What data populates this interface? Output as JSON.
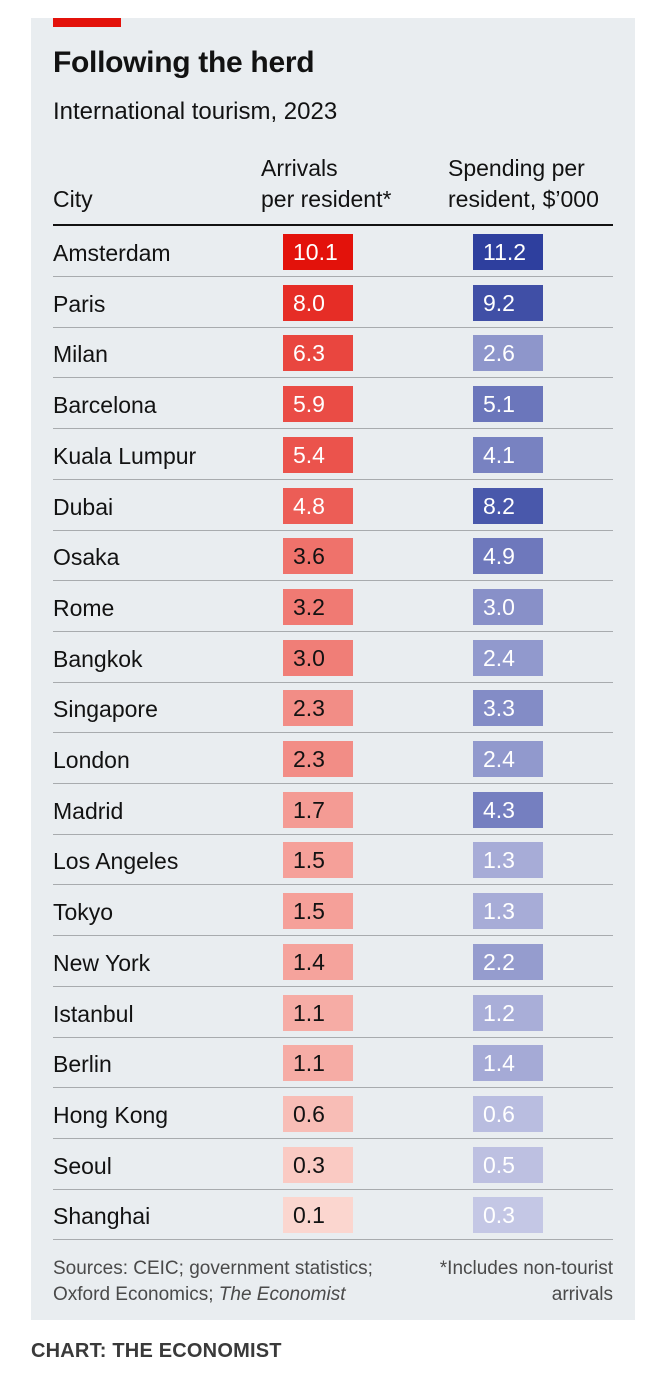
{
  "title": "Following the herd",
  "subtitle": "International tourism, 2023",
  "columns": {
    "city": "City",
    "arrivals_line1": "Arrivals",
    "arrivals_line2": "per resident*",
    "spending_line1": "Spending per",
    "spending_line2": "resident, $’000"
  },
  "chart_data": {
    "type": "table",
    "title": "Following the herd",
    "subtitle": "International tourism, 2023",
    "columns": [
      "City",
      "Arrivals per resident*",
      "Spending per resident, $’000"
    ],
    "rows": [
      {
        "city": "Amsterdam",
        "arrivals": "10.1",
        "spending": "11.2"
      },
      {
        "city": "Paris",
        "arrivals": "8.0",
        "spending": "9.2"
      },
      {
        "city": "Milan",
        "arrivals": "6.3",
        "spending": "2.6"
      },
      {
        "city": "Barcelona",
        "arrivals": "5.9",
        "spending": "5.1"
      },
      {
        "city": "Kuala Lumpur",
        "arrivals": "5.4",
        "spending": "4.1"
      },
      {
        "city": "Dubai",
        "arrivals": "4.8",
        "spending": "8.2"
      },
      {
        "city": "Osaka",
        "arrivals": "3.6",
        "spending": "4.9"
      },
      {
        "city": "Rome",
        "arrivals": "3.2",
        "spending": "3.0"
      },
      {
        "city": "Bangkok",
        "arrivals": "3.0",
        "spending": "2.4"
      },
      {
        "city": "Singapore",
        "arrivals": "2.3",
        "spending": "3.3"
      },
      {
        "city": "London",
        "arrivals": "2.3",
        "spending": "2.4"
      },
      {
        "city": "Madrid",
        "arrivals": "1.7",
        "spending": "4.3"
      },
      {
        "city": "Los Angeles",
        "arrivals": "1.5",
        "spending": "1.3"
      },
      {
        "city": "Tokyo",
        "arrivals": "1.5",
        "spending": "1.3"
      },
      {
        "city": "New York",
        "arrivals": "1.4",
        "spending": "2.2"
      },
      {
        "city": "Istanbul",
        "arrivals": "1.1",
        "spending": "1.2"
      },
      {
        "city": "Berlin",
        "arrivals": "1.1",
        "spending": "1.4"
      },
      {
        "city": "Hong Kong",
        "arrivals": "0.6",
        "spending": "0.6"
      },
      {
        "city": "Seoul",
        "arrivals": "0.3",
        "spending": "0.5"
      },
      {
        "city": "Shanghai",
        "arrivals": "0.1",
        "spending": "0.3"
      }
    ],
    "colors": {
      "arrivals_max": "#e3120b",
      "arrivals_min": "#fde3dc",
      "spending_max": "#2e3f9e",
      "spending_min": "#dcdcf0"
    }
  },
  "sources": {
    "line1": "Sources: CEIC; government statistics;",
    "line2_plain": "Oxford Economics; ",
    "line2_italic": "The Economist"
  },
  "footnote": {
    "line1": "*Includes non-tourist",
    "line2": "arrivals"
  },
  "credit": "CHART: THE ECONOMIST",
  "colors": {
    "background": "#e9edf0",
    "brand_red": "#e3120b"
  }
}
